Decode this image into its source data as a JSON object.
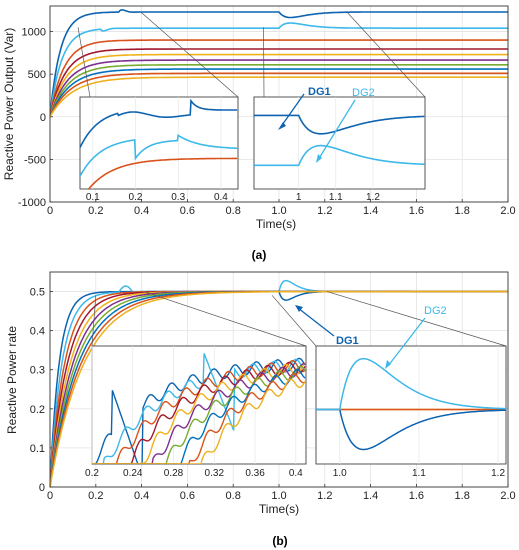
{
  "figure": {
    "panels": [
      {
        "id": "a",
        "label": "(a)"
      },
      {
        "id": "b",
        "label": "(b)"
      }
    ]
  },
  "chart_data": [
    {
      "type": "line",
      "panel": "(a)",
      "title": "",
      "xlabel": "Time(s)",
      "ylabel": "Reactive Power Output (Var)",
      "xlim": [
        0,
        2.0
      ],
      "ylim": [
        -1000,
        1300
      ],
      "xticks": [
        0,
        0.2,
        0.4,
        0.6,
        0.8,
        1.0,
        1.2,
        1.4,
        1.6,
        1.8,
        2.0
      ],
      "xtick_labels": [
        "0",
        "0.2",
        "0.4",
        "0.6",
        "0.8",
        "1.0",
        "1.2",
        "1.4",
        "1.6",
        "1.8",
        "2.0"
      ],
      "yticks": [
        -1000,
        -500,
        0,
        500,
        1000
      ],
      "yticks_labels": [
        "-1000",
        "-500",
        "0",
        "500",
        "1000"
      ],
      "grid": true,
      "annotations": [
        "DG1",
        "DG2"
      ],
      "series": [
        {
          "color": "#0d63b0",
          "steady": 1230,
          "tau": 0.045,
          "bump1": 0.3,
          "dip": [
            1.0,
            -65
          ]
        },
        {
          "color": "#3db8ea",
          "steady": 1040,
          "tau": 0.05,
          "bump1": 0.22,
          "dip": [
            1.0,
            60
          ]
        },
        {
          "color": "#d9521c",
          "steady": 900,
          "tau": 0.06
        },
        {
          "color": "#a2182c",
          "steady": 795,
          "tau": 0.065
        },
        {
          "color": "#f0b21a",
          "steady": 730,
          "tau": 0.07
        },
        {
          "color": "#7e2f8e",
          "steady": 665,
          "tau": 0.075
        },
        {
          "color": "#77ac30",
          "steady": 610,
          "tau": 0.08
        },
        {
          "color": "#0072bd",
          "steady": 560,
          "tau": 0.085
        },
        {
          "color": "#d95319",
          "steady": 510,
          "tau": 0.09
        },
        {
          "color": "#edb120",
          "steady": 465,
          "tau": 0.1
        }
      ],
      "insets": [
        {
          "xlim": [
            0.07,
            0.44
          ],
          "xticks": [
            0.1,
            0.2,
            0.3,
            0.4
          ],
          "xtick_labels": [
            "0.1",
            "0.2",
            "0.3",
            "0.4"
          ]
        },
        {
          "xlim": [
            0.88,
            1.34
          ],
          "xticks": [
            1.0,
            1.1,
            1.2
          ],
          "xtick_labels": [
            "1",
            "1.1",
            "1.2"
          ]
        }
      ]
    },
    {
      "type": "line",
      "panel": "(b)",
      "title": "",
      "xlabel": "Time(s)",
      "ylabel": "Reactive Power rate",
      "xlim": [
        0,
        2.0
      ],
      "ylim": [
        0,
        0.55
      ],
      "xticks": [
        0,
        0.2,
        0.4,
        0.6,
        0.8,
        1.0,
        1.2,
        1.4,
        1.6,
        1.8,
        2.0
      ],
      "xtick_labels": [
        "0",
        "0.2",
        "0.4",
        "0.6",
        "0.8",
        "1.0",
        "1.2",
        "1.4",
        "1.6",
        "1.8",
        "2.0"
      ],
      "yticks": [
        0,
        0.1,
        0.2,
        0.3,
        0.4,
        0.5
      ],
      "yticks_labels": [
        "0",
        "0.1",
        "0.2",
        "0.3",
        "0.4",
        "0.5"
      ],
      "grid": true,
      "annotations": [
        "DG1",
        "DG2"
      ],
      "steady_value": 0.5,
      "dip_DG1": [
        1.02,
        0.478
      ],
      "peak_DG2": [
        1.03,
        0.528
      ],
      "insets": [
        {
          "xlim": [
            0.2,
            0.41
          ],
          "xticks": [
            0.2,
            0.24,
            0.28,
            0.32,
            0.36,
            0.4
          ],
          "xtick_labels": [
            "0.2",
            "0.24",
            "0.28",
            "0.32",
            "0.36",
            "0.4"
          ]
        },
        {
          "xlim": [
            0.97,
            1.21
          ],
          "xticks": [
            1.0,
            1.1,
            1.2
          ],
          "xtick_labels": [
            "1.0",
            "1.1",
            "1.2"
          ]
        }
      ]
    }
  ]
}
